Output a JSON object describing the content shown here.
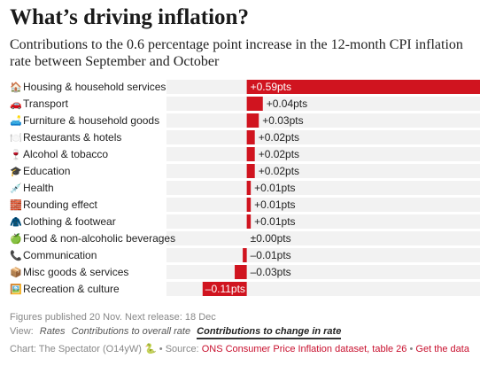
{
  "header": {
    "title": "What’s driving inflation?",
    "subtitle": "Contributions to the 0.6 percentage point increase in the 12-month CPI inflation rate between September and October"
  },
  "colors": {
    "bar": "#d0141f",
    "track": "#f2f2f2",
    "text": "#222222"
  },
  "chart_data": {
    "type": "bar",
    "orientation": "horizontal",
    "categories": [
      "Housing & household services",
      "Transport",
      "Furniture & household goods",
      "Restaurants & hotels",
      "Alcohol & tobacco",
      "Education",
      "Health",
      "Rounding effect",
      "Clothing & footwear",
      "Food & non-alcoholic beverages",
      "Communication",
      "Misc goods & services",
      "Recreation & culture"
    ],
    "icons": [
      "🏠",
      "🚗",
      "🛋️",
      "🍽️",
      "🍷",
      "🎓",
      "💉",
      "🧱",
      "🧥",
      "🍏",
      "📞",
      "📦",
      "🖼️"
    ],
    "values": [
      0.59,
      0.04,
      0.03,
      0.02,
      0.02,
      0.02,
      0.01,
      0.01,
      0.01,
      0.0,
      -0.01,
      -0.03,
      -0.11
    ],
    "value_labels": [
      "+0.59pts",
      "+0.04pts",
      "+0.03pts",
      "+0.02pts",
      "+0.02pts",
      "+0.02pts",
      "+0.01pts",
      "+0.01pts",
      "+0.01pts",
      "±0.00pts",
      "–0.01pts",
      "–0.03pts",
      "–0.11pts"
    ],
    "xlim": [
      -0.2,
      0.59
    ]
  },
  "footer": {
    "published": "Figures published 20 Nov. Next release: 18 Dec",
    "view_label": "View:",
    "view_options": [
      "Rates",
      "Contributions to overall rate",
      "Contributions to change in rate"
    ],
    "chart_credit": "Chart: The Spectator (O14yW)",
    "snake": "🐍",
    "source_label": "• Source:",
    "source_link": "ONS Consumer Price Inflation dataset, table 26",
    "separator": "•",
    "data_link": "Get the data"
  }
}
